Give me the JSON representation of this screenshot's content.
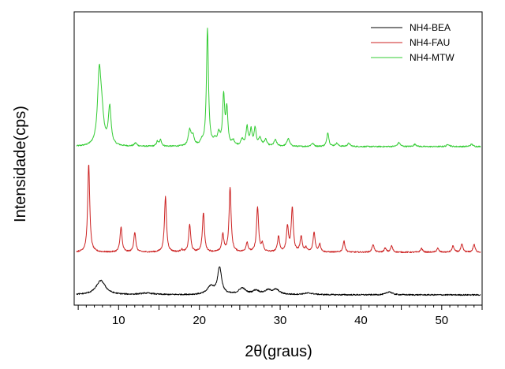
{
  "chart_data": {
    "type": "line",
    "title": "",
    "xlabel": "2θ(graus)",
    "ylabel": "Intensidade(cps)",
    "xlim": [
      4.5,
      55
    ],
    "xticks": [
      10,
      20,
      30,
      40,
      50
    ],
    "grid": false,
    "yticks_labeled": false,
    "legend": {
      "placement": "top-right",
      "entries": [
        {
          "label": "NH4-BEA",
          "color": "#000000"
        },
        {
          "label": "NH4-FAU",
          "color": "#cc2222"
        },
        {
          "label": "NH4-MTW",
          "color": "#33cc33"
        }
      ]
    },
    "series": [
      {
        "name": "NH4-MTW",
        "color": "#33cc33",
        "baseline": 0,
        "peaks": [
          [
            7.6,
            85,
            0.25
          ],
          [
            7.9,
            35,
            0.3
          ],
          [
            8.9,
            48,
            0.2
          ],
          [
            12.1,
            4,
            0.2
          ],
          [
            14.8,
            6,
            0.15
          ],
          [
            15.2,
            8,
            0.15
          ],
          [
            18.8,
            20,
            0.2
          ],
          [
            19.2,
            12,
            0.2
          ],
          [
            20.3,
            5,
            0.2
          ],
          [
            21.0,
            148,
            0.15
          ],
          [
            21.9,
            6,
            0.2
          ],
          [
            22.4,
            14,
            0.2
          ],
          [
            23.0,
            62,
            0.15
          ],
          [
            23.4,
            45,
            0.15
          ],
          [
            24.2,
            6,
            0.2
          ],
          [
            25.3,
            8,
            0.2
          ],
          [
            25.9,
            24,
            0.15
          ],
          [
            26.4,
            20,
            0.15
          ],
          [
            26.9,
            22,
            0.15
          ],
          [
            27.5,
            10,
            0.2
          ],
          [
            28.2,
            8,
            0.2
          ],
          [
            29.4,
            8,
            0.2
          ],
          [
            31.0,
            10,
            0.2
          ],
          [
            34.0,
            4,
            0.2
          ],
          [
            35.9,
            18,
            0.15
          ],
          [
            37.0,
            4,
            0.2
          ],
          [
            38.5,
            4,
            0.2
          ],
          [
            44.7,
            5,
            0.2
          ],
          [
            46.7,
            3,
            0.2
          ],
          [
            50.8,
            3,
            0.2
          ],
          [
            53.7,
            3,
            0.2
          ]
        ]
      },
      {
        "name": "NH4-FAU",
        "color": "#cc2222",
        "baseline": 0,
        "peaks": [
          [
            6.3,
            112,
            0.15
          ],
          [
            10.3,
            32,
            0.15
          ],
          [
            12.0,
            25,
            0.15
          ],
          [
            15.8,
            70,
            0.15
          ],
          [
            17.8,
            3,
            0.15
          ],
          [
            18.8,
            35,
            0.15
          ],
          [
            20.5,
            50,
            0.15
          ],
          [
            22.9,
            22,
            0.15
          ],
          [
            23.8,
            82,
            0.15
          ],
          [
            25.9,
            12,
            0.15
          ],
          [
            27.2,
            57,
            0.15
          ],
          [
            27.8,
            10,
            0.15
          ],
          [
            29.8,
            20,
            0.15
          ],
          [
            30.9,
            32,
            0.15
          ],
          [
            31.5,
            56,
            0.15
          ],
          [
            32.6,
            20,
            0.15
          ],
          [
            33.2,
            5,
            0.15
          ],
          [
            34.2,
            25,
            0.15
          ],
          [
            34.9,
            10,
            0.15
          ],
          [
            37.9,
            14,
            0.15
          ],
          [
            41.5,
            10,
            0.15
          ],
          [
            43.0,
            5,
            0.15
          ],
          [
            43.8,
            8,
            0.15
          ],
          [
            47.5,
            5,
            0.15
          ],
          [
            49.5,
            5,
            0.15
          ],
          [
            51.4,
            8,
            0.15
          ],
          [
            52.5,
            10,
            0.15
          ],
          [
            54.0,
            10,
            0.15
          ]
        ]
      },
      {
        "name": "NH4-BEA",
        "color": "#000000",
        "baseline": 0,
        "peaks": [
          [
            7.8,
            18,
            0.7
          ],
          [
            13.5,
            2,
            1.0
          ],
          [
            21.4,
            10,
            0.5
          ],
          [
            22.5,
            34,
            0.3
          ],
          [
            25.3,
            8,
            0.5
          ],
          [
            27.0,
            5,
            0.5
          ],
          [
            28.5,
            5,
            0.5
          ],
          [
            29.5,
            6,
            0.5
          ],
          [
            33.5,
            2,
            0.8
          ],
          [
            43.5,
            4,
            0.4
          ]
        ]
      }
    ]
  }
}
